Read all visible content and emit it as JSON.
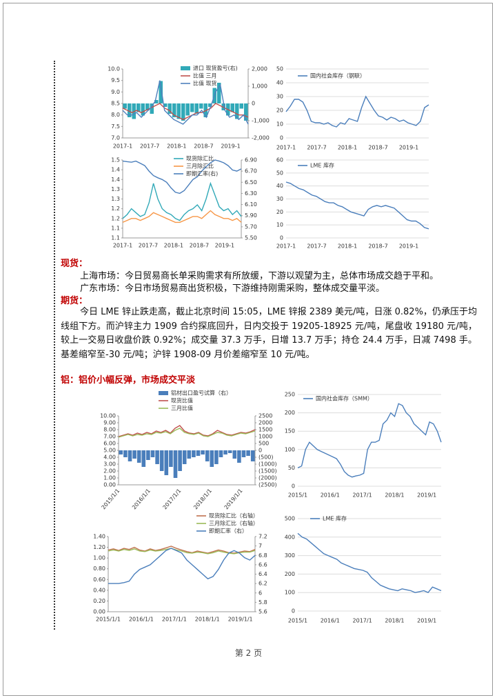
{
  "spot": {
    "heading": "现货：",
    "lines": [
      "上海市场：今日贸易商长单采购需求有所放缓，下游以观望为主，总体市场成交趋于平和。",
      "广东市场：今日市场贸易商出货积极，下游维持刚需采购，整体成交量平淡。"
    ]
  },
  "futures": {
    "heading": "期货：",
    "paragraph": "今日 LME 锌止跌走高，截止北京时间 15:05，LME 锌报 2389 美元/吨，日涨 0.82%，仍承压于均线组下方。而沪锌主力 1909 合约探底回升，日内交投于 19205-18925 元/吨，尾盘收 19180 元/吨，较上一交易日收盘价跌 0.92%；成交量 37.3 万手，日增 13.7 万手；持仓 24.4 万手，日减 7498 手。基差缩窄至-30 元/吨；沪锌 1908-09 月价差缩窄至 10 元/吨。"
  },
  "aluminum_heading": "铝：铝价小幅反弹，市场成交平淡",
  "footer": "第 2 页",
  "charts": [
    {
      "type": "combo",
      "categories": [
        "2017-1",
        "2017-7",
        "2018-1",
        "2018-7",
        "2019-1"
      ],
      "ylim": [
        7,
        10
      ],
      "yticks": [
        {
          "value": 7,
          "label": "7.0"
        },
        7.5,
        {
          "value": 8,
          "label": "8.0"
        },
        8.5,
        {
          "value": 9,
          "label": "9.0"
        },
        9.5,
        {
          "value": 10,
          "label": "10.0"
        }
      ],
      "y2lim": [
        -2000,
        2000
      ],
      "y2ticks": [
        {
          "value": -2000,
          "label": "-2,000"
        },
        {
          "value": -1000,
          "label": "-1,000"
        },
        0,
        {
          "value": 1000,
          "label": "1,000"
        },
        {
          "value": 2000,
          "label": "2,000"
        }
      ],
      "grid": false,
      "series": [
        {
          "name": "进口 现货盈亏(右)",
          "type": "bar",
          "axis": "y2",
          "color": "#31a9b8",
          "values": [
            -300,
            -800,
            -900,
            -500,
            -700,
            -400,
            -600,
            200,
            1300,
            -200,
            -600,
            -800,
            -900,
            -1000,
            -700,
            -500,
            -600,
            -300,
            -800,
            -200,
            900,
            1200,
            -400,
            -700,
            -500,
            -900,
            -300,
            -1000
          ]
        },
        {
          "name": "比值 三月",
          "type": "line",
          "color": "#c0504d",
          "values": [
            8.3,
            8.2,
            8.1,
            8.2,
            8.1,
            8.2,
            8.3,
            8.4,
            8.5,
            8.3,
            8.2,
            8.0,
            7.9,
            7.8,
            7.9,
            8.0,
            8.1,
            8.1,
            8.2,
            8.3,
            8.5,
            8.4,
            8.3,
            8.2,
            8.1,
            8.0,
            8.0,
            7.9
          ]
        },
        {
          "name": "比值 现货",
          "type": "line",
          "color": "#4f81bd",
          "values": [
            8.2,
            8.0,
            8.0,
            8.1,
            7.9,
            8.1,
            8.3,
            8.6,
            9.5,
            8.2,
            8.0,
            7.8,
            7.7,
            7.6,
            7.8,
            8.0,
            8.0,
            8.2,
            7.9,
            8.4,
            9.0,
            9.3,
            8.2,
            7.9,
            8.0,
            7.8,
            8.0,
            7.6
          ]
        }
      ]
    },
    {
      "type": "line",
      "categories": [
        "2017-1",
        "2017-7",
        "2018-1",
        "2018-7",
        "2019-1"
      ],
      "ylim": [
        0,
        50
      ],
      "yticks": [
        0,
        10,
        20,
        30,
        40,
        50
      ],
      "grid": true,
      "series": [
        {
          "name": "国内社会库存（钢联）",
          "type": "line",
          "color": "#4a7ebb",
          "values": [
            19,
            23,
            28,
            28,
            26,
            20,
            12,
            11,
            11,
            10,
            11,
            9,
            8,
            11,
            10,
            14,
            13,
            12,
            22,
            30,
            25,
            20,
            16,
            15,
            13,
            15,
            14,
            12,
            13,
            11,
            10,
            9,
            12,
            22,
            24
          ]
        }
      ]
    },
    {
      "type": "combo",
      "categories": [
        "2017-1",
        "2017-7",
        "2018-1",
        "2018-7",
        "2019-1"
      ],
      "ylim": [
        1.1,
        1.5
      ],
      "yticks": [
        1.1,
        {
          "value": 1.15,
          "label": "1.1"
        },
        1.2,
        {
          "value": 1.25,
          "label": "1.2"
        },
        1.3,
        {
          "value": 1.35,
          "label": "1.3"
        },
        1.4,
        {
          "value": 1.45,
          "label": "1.4"
        },
        1.5
      ],
      "y2lim": [
        5.5,
        6.9
      ],
      "y2ticks": [
        {
          "value": 5.5,
          "label": "5.50"
        },
        {
          "value": 5.7,
          "label": "5.70"
        },
        {
          "value": 5.9,
          "label": "5.90"
        },
        {
          "value": 6.1,
          "label": "6.10"
        },
        {
          "value": 6.3,
          "label": "6.30"
        },
        {
          "value": 6.5,
          "label": "6.50"
        },
        {
          "value": 6.7,
          "label": "6.70"
        },
        {
          "value": 6.9,
          "label": "6.90"
        }
      ],
      "grid": false,
      "series": [
        {
          "name": "现货除汇比",
          "type": "line",
          "color": "#31a9b8",
          "values": [
            1.2,
            1.22,
            1.25,
            1.23,
            1.21,
            1.22,
            1.28,
            1.38,
            1.3,
            1.25,
            1.23,
            1.22,
            1.2,
            1.19,
            1.22,
            1.24,
            1.25,
            1.27,
            1.24,
            1.3,
            1.38,
            1.32,
            1.26,
            1.24,
            1.25,
            1.22,
            1.24,
            1.21
          ]
        },
        {
          "name": "三月除汇比",
          "type": "line",
          "color": "#f79646",
          "values": [
            1.18,
            1.19,
            1.2,
            1.2,
            1.19,
            1.2,
            1.21,
            1.23,
            1.22,
            1.21,
            1.2,
            1.19,
            1.18,
            1.18,
            1.19,
            1.2,
            1.21,
            1.21,
            1.2,
            1.22,
            1.24,
            1.22,
            1.21,
            1.2,
            1.2,
            1.19,
            1.2,
            1.18
          ]
        },
        {
          "name": "即期汇率(右)",
          "type": "line",
          "axis": "y2",
          "color": "#4a7ebb",
          "values": [
            6.88,
            6.87,
            6.86,
            6.88,
            6.84,
            6.8,
            6.7,
            6.62,
            6.58,
            6.55,
            6.5,
            6.4,
            6.32,
            6.3,
            6.35,
            6.45,
            6.55,
            6.6,
            6.7,
            6.78,
            6.85,
            6.9,
            6.88,
            6.85,
            6.8,
            6.72,
            6.7,
            6.74
          ]
        }
      ]
    },
    {
      "type": "line",
      "categories": [
        "2017-1",
        "2017-7",
        "2018-1",
        "2018-7",
        "2019-1"
      ],
      "ylim": [
        0,
        60
      ],
      "yticks": [
        0,
        10,
        20,
        30,
        40,
        50,
        60
      ],
      "grid": true,
      "series": [
        {
          "name": "LME 库存",
          "type": "line",
          "color": "#4a7ebb",
          "values": [
            43,
            42,
            40,
            38,
            37,
            35,
            33,
            32,
            30,
            28,
            27,
            27,
            25,
            24,
            22,
            20,
            19,
            18,
            17,
            22,
            24,
            25,
            24,
            25,
            24,
            23,
            20,
            17,
            14,
            13,
            13,
            11,
            8,
            7
          ]
        }
      ]
    },
    {
      "type": "combo",
      "categories": [
        "2015/1/1",
        "2016/1/1",
        "2017/1/1",
        "2018/1/1",
        "2019/1/1"
      ],
      "ylim": [
        0,
        10
      ],
      "yticks": [
        {
          "value": 0,
          "label": "0.00"
        },
        {
          "value": 1,
          "label": "1.00"
        },
        {
          "value": 2,
          "label": "2.00"
        },
        {
          "value": 3,
          "label": "3.00"
        },
        {
          "value": 4,
          "label": "4.00"
        },
        {
          "value": 5,
          "label": "5.00"
        },
        {
          "value": 6,
          "label": "6.00"
        },
        {
          "value": 7,
          "label": "7.00"
        },
        {
          "value": 8,
          "label": "8.00"
        },
        {
          "value": 9,
          "label": "9.00"
        },
        {
          "value": 10,
          "label": "10.00"
        }
      ],
      "y2lim": [
        -2500,
        2500
      ],
      "y2ticks": [
        {
          "value": -2500,
          "label": "(2500)"
        },
        {
          "value": -2000,
          "label": "(2000)"
        },
        {
          "value": -1500,
          "label": "(1500)"
        },
        {
          "value": -1000,
          "label": "(1000)"
        },
        {
          "value": -500,
          "label": "(500)"
        },
        0,
        500,
        1000,
        1500,
        2000,
        2500
      ],
      "y2tick_negative_color": "#e00000",
      "grid": false,
      "series": [
        {
          "name": "铝材出口盈亏试算（右）",
          "type": "bar",
          "axis": "y2",
          "color": "#4a7ebb",
          "values": [
            -300,
            -500,
            -800,
            -600,
            -900,
            -1200,
            -700,
            -500,
            -1000,
            -1500,
            -1800,
            -1200,
            -2000,
            -1500,
            -1000,
            -600,
            -500,
            -400,
            -300,
            -800,
            -1200,
            -1000,
            -500,
            -300,
            -200,
            -600,
            -900,
            -500,
            -400,
            -800
          ]
        },
        {
          "name": "现货比值",
          "type": "line",
          "color": "#c0504d",
          "values": [
            7.0,
            7.2,
            7.4,
            7.2,
            7.5,
            7.3,
            7.6,
            7.4,
            7.8,
            7.6,
            7.9,
            7.5,
            8.2,
            8.6,
            7.8,
            7.5,
            7.4,
            7.6,
            7.2,
            7.1,
            7.4,
            7.9,
            7.6,
            7.3,
            7.2,
            7.4,
            7.6,
            7.5,
            7.7,
            8.0
          ]
        },
        {
          "name": "三月比值",
          "type": "line",
          "color": "#9bbb59",
          "values": [
            6.9,
            7.1,
            7.3,
            7.1,
            7.3,
            7.2,
            7.4,
            7.3,
            7.6,
            7.5,
            7.7,
            7.4,
            7.9,
            8.2,
            7.6,
            7.4,
            7.3,
            7.5,
            7.1,
            7.0,
            7.3,
            7.6,
            7.5,
            7.2,
            7.1,
            7.3,
            7.5,
            7.4,
            7.6,
            7.8
          ]
        }
      ]
    },
    {
      "type": "line",
      "categories": [
        "2015/1",
        "2016/1",
        "2017/1",
        "2018/1",
        "2019/1"
      ],
      "ylim": [
        0,
        250
      ],
      "yticks": [
        0,
        50,
        100,
        150,
        200,
        250
      ],
      "grid": true,
      "series": [
        {
          "name": "国内社会库存（SMM）",
          "type": "line",
          "color": "#4a7ebb",
          "values": [
            50,
            55,
            100,
            120,
            110,
            100,
            95,
            90,
            85,
            80,
            75,
            60,
            40,
            30,
            25,
            28,
            30,
            35,
            100,
            120,
            120,
            125,
            170,
            180,
            200,
            190,
            225,
            220,
            200,
            190,
            170,
            160,
            150,
            140,
            175,
            170,
            150,
            120
          ]
        }
      ]
    },
    {
      "type": "combo",
      "categories": [
        "2015/1/1",
        "2016/1/1",
        "2017/1/1",
        "2018/1/1",
        "2019/1/1"
      ],
      "ylim": [
        0,
        1.4
      ],
      "yticks": [
        {
          "value": 0,
          "label": "0.00"
        },
        {
          "value": 0.2,
          "label": "0.20"
        },
        {
          "value": 0.4,
          "label": "0.40"
        },
        {
          "value": 0.6,
          "label": "0.60"
        },
        {
          "value": 0.8,
          "label": "0.80"
        },
        {
          "value": 1,
          "label": "1.00"
        },
        {
          "value": 1.2,
          "label": "1.20"
        },
        {
          "value": 1.4,
          "label": "1.40"
        }
      ],
      "y2lim": [
        5.6,
        7.2
      ],
      "y2ticks": [
        5.6,
        5.8,
        6,
        6.2,
        6.4,
        6.6,
        6.8,
        7,
        7.2
      ],
      "grid": false,
      "series": [
        {
          "name": "现货除汇比（右轴）",
          "type": "line",
          "color": "#c0704d",
          "values": [
            1.15,
            1.17,
            1.14,
            1.18,
            1.16,
            1.2,
            1.15,
            1.13,
            1.17,
            1.14,
            1.16,
            1.19,
            1.22,
            1.18,
            1.15,
            1.12,
            1.1,
            1.13,
            1.11,
            1.09,
            1.12,
            1.15,
            1.13,
            1.1,
            1.09,
            1.11,
            1.13,
            1.12,
            1.16
          ]
        },
        {
          "name": "三月除汇比（右轴）",
          "type": "line",
          "color": "#9bbb59",
          "values": [
            1.13,
            1.15,
            1.13,
            1.16,
            1.14,
            1.17,
            1.13,
            1.12,
            1.15,
            1.13,
            1.14,
            1.16,
            1.18,
            1.15,
            1.13,
            1.1,
            1.09,
            1.11,
            1.1,
            1.08,
            1.1,
            1.13,
            1.11,
            1.09,
            1.08,
            1.1,
            1.11,
            1.11,
            1.14
          ]
        },
        {
          "name": "即期汇率（右）",
          "type": "line",
          "axis": "y2",
          "color": "#4a7ebb",
          "values": [
            6.2,
            6.2,
            6.2,
            6.22,
            6.25,
            6.4,
            6.5,
            6.55,
            6.6,
            6.7,
            6.8,
            6.9,
            6.95,
            6.9,
            6.85,
            6.7,
            6.6,
            6.5,
            6.4,
            6.3,
            6.35,
            6.5,
            6.7,
            6.85,
            6.9,
            6.85,
            6.75,
            6.7,
            6.8
          ]
        }
      ]
    },
    {
      "type": "line",
      "categories": [
        "2015/1",
        "2016/1",
        "2017/1",
        "2018/1",
        "2019/1"
      ],
      "ylim": [
        0,
        500
      ],
      "yticks": [
        0,
        100,
        200,
        300,
        400,
        500
      ],
      "grid": true,
      "series": [
        {
          "name": "LME 库存",
          "type": "line",
          "color": "#4a7ebb",
          "values": [
            420,
            400,
            390,
            370,
            350,
            330,
            310,
            300,
            290,
            280,
            260,
            250,
            240,
            230,
            225,
            220,
            210,
            180,
            160,
            140,
            130,
            120,
            115,
            110,
            120,
            115,
            110,
            100,
            105,
            110,
            100,
            130,
            120,
            110
          ]
        }
      ]
    }
  ]
}
